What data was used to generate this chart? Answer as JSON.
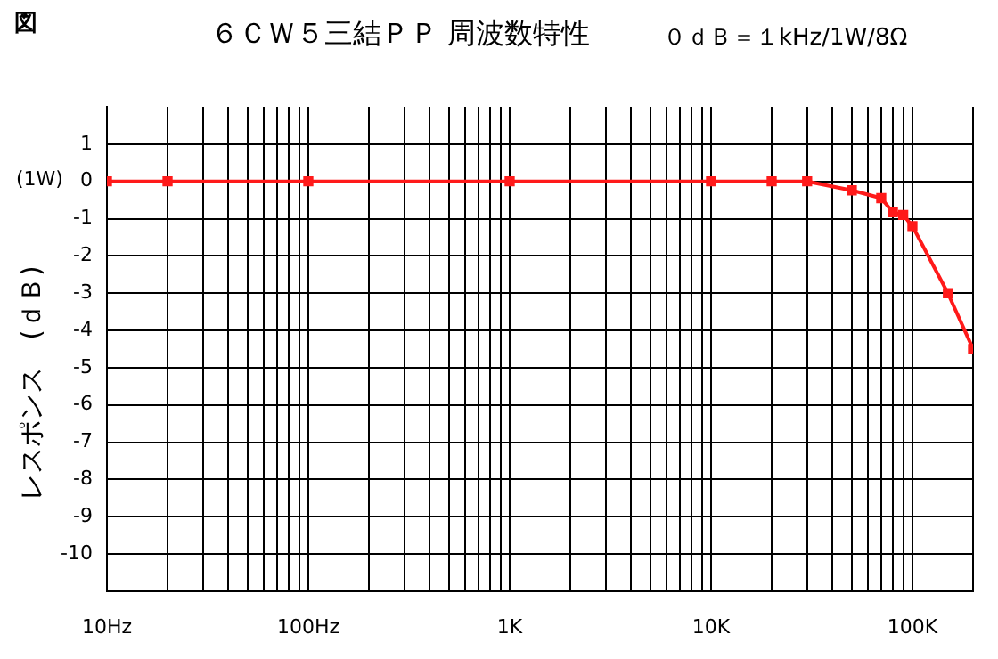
{
  "chart_data": {
    "type": "line",
    "title": "６ＣＷ５三結ＰＰ 周波数特性",
    "subtitle": "０ｄＢ＝１kHz/1W/8Ω",
    "ylabel": "レスポンス　(ｄＢ)",
    "annotations": [
      "図",
      "(1W)"
    ],
    "x": [
      10,
      20,
      100,
      1000,
      10000,
      20000,
      30000,
      50000,
      70000,
      80000,
      90000,
      100000,
      150000,
      200000
    ],
    "series": [
      {
        "color": "#ff1a1a",
        "values": [
          0,
          0,
          0,
          0,
          0,
          0,
          0,
          -0.24,
          -0.45,
          -0.83,
          -0.9,
          -1.2,
          -3.0,
          -4.5
        ]
      }
    ],
    "xlim": [
      10,
      200000
    ],
    "ylim": [
      -11,
      2
    ],
    "log": "x",
    "xticks": [
      {
        "value": 10,
        "label": "10Hz"
      },
      {
        "value": 20,
        "label": null
      },
      {
        "value": 30,
        "label": null
      },
      {
        "value": 40,
        "label": null
      },
      {
        "value": 50,
        "label": null
      },
      {
        "value": 60,
        "label": null
      },
      {
        "value": 70,
        "label": null
      },
      {
        "value": 80,
        "label": null
      },
      {
        "value": 90,
        "label": null
      },
      {
        "value": 100,
        "label": "100Hz"
      },
      {
        "value": 200,
        "label": null
      },
      {
        "value": 300,
        "label": null
      },
      {
        "value": 400,
        "label": null
      },
      {
        "value": 500,
        "label": null
      },
      {
        "value": 600,
        "label": null
      },
      {
        "value": 700,
        "label": null
      },
      {
        "value": 800,
        "label": null
      },
      {
        "value": 900,
        "label": null
      },
      {
        "value": 1000,
        "label": "1K"
      },
      {
        "value": 2000,
        "label": null
      },
      {
        "value": 3000,
        "label": null
      },
      {
        "value": 4000,
        "label": null
      },
      {
        "value": 5000,
        "label": null
      },
      {
        "value": 6000,
        "label": null
      },
      {
        "value": 7000,
        "label": null
      },
      {
        "value": 8000,
        "label": null
      },
      {
        "value": 9000,
        "label": null
      },
      {
        "value": 10000,
        "label": "10K"
      },
      {
        "value": 20000,
        "label": null
      },
      {
        "value": 30000,
        "label": null
      },
      {
        "value": 40000,
        "label": null
      },
      {
        "value": 50000,
        "label": null
      },
      {
        "value": 60000,
        "label": null
      },
      {
        "value": 70000,
        "label": null
      },
      {
        "value": 80000,
        "label": null
      },
      {
        "value": 90000,
        "label": null
      },
      {
        "value": 100000,
        "label": "100K"
      },
      {
        "value": 200000,
        "label": null
      }
    ],
    "yticks": [
      1,
      0,
      -1,
      -2,
      -3,
      -4,
      -5,
      -6,
      -7,
      -8,
      -9,
      -10
    ],
    "grid": true,
    "legend": false,
    "marker": "square",
    "line_style": "solid"
  }
}
